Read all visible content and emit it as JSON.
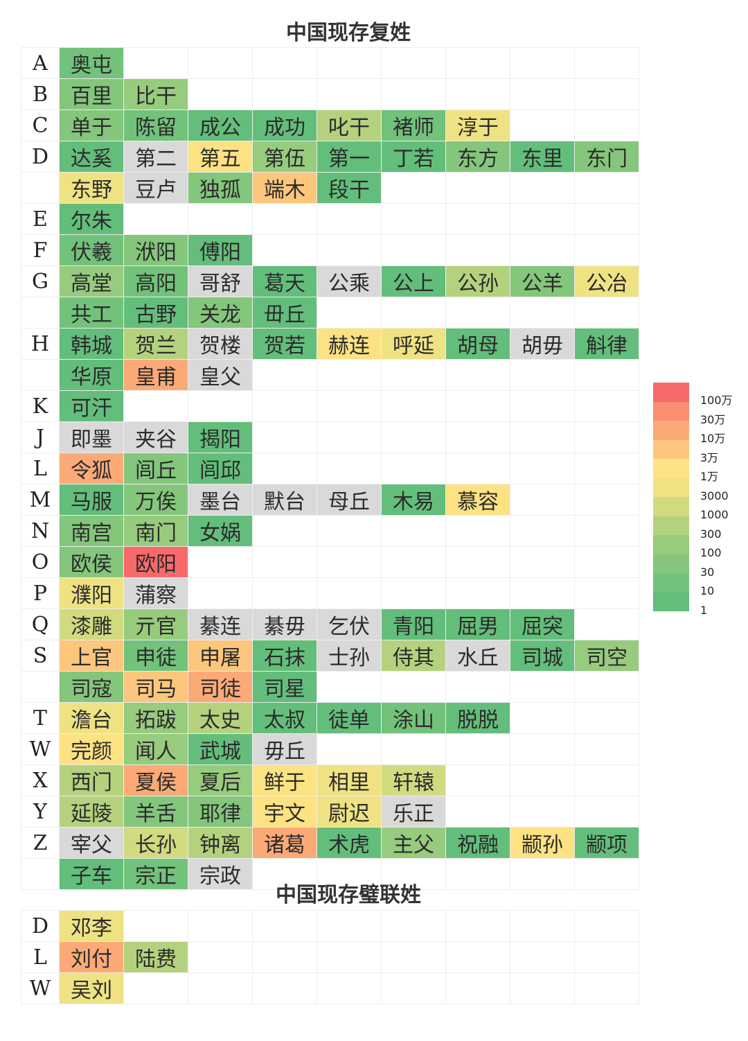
{
  "chart_data": {
    "type": "table",
    "title": "中国现存复姓",
    "palette": {
      "1": "#63be7b",
      "2": "#72c27b",
      "3": "#84c67c",
      "4": "#97cb7d",
      "5": "#b4d27e",
      "6": "#d2da80",
      "7": "#efe283",
      "8": "#fde283",
      "9": "#fcc67c",
      "10": "#fbaa77",
      "11": "#f98e72",
      "12": "#f8696b",
      "na": "#d9d9d9"
    },
    "legend": {
      "labels": [
        "100万",
        "30万",
        "10万",
        "3万",
        "1万",
        "3000",
        "1000",
        "300",
        "100",
        "30",
        "10",
        "1"
      ],
      "colors": [
        "#f8696b",
        "#f98e72",
        "#fbaa77",
        "#fcc67c",
        "#fde283",
        "#efe283",
        "#d2da80",
        "#b4d27e",
        "#97cb7d",
        "#84c67c",
        "#72c27b",
        "#63be7b"
      ]
    },
    "rows": [
      {
        "letter": "A",
        "cells": [
          [
            "奥屯",
            2
          ]
        ]
      },
      {
        "letter": "B",
        "cells": [
          [
            "百里",
            3
          ],
          [
            "比干",
            4
          ]
        ]
      },
      {
        "letter": "C",
        "cells": [
          [
            "单于",
            3
          ],
          [
            "陈留",
            2
          ],
          [
            "成公",
            1
          ],
          [
            "成功",
            1
          ],
          [
            "叱干",
            5
          ],
          [
            "褚师",
            2
          ],
          [
            "淳于",
            7
          ]
        ]
      },
      {
        "letter": "D",
        "cells": [
          [
            "达奚",
            1
          ],
          [
            "第二",
            "na"
          ],
          [
            "第五",
            8
          ],
          [
            "第伍",
            4
          ],
          [
            "第一",
            1
          ],
          [
            "丁若",
            1
          ],
          [
            "东方",
            3
          ],
          [
            "东里",
            1
          ],
          [
            "东门",
            3
          ]
        ]
      },
      {
        "letter": "",
        "cells": [
          [
            "东野",
            7
          ],
          [
            "豆卢",
            "na"
          ],
          [
            "独孤",
            3
          ],
          [
            "端木",
            9
          ],
          [
            "段干",
            1
          ]
        ]
      },
      {
        "letter": "E",
        "cells": [
          [
            "尔朱",
            1
          ]
        ]
      },
      {
        "letter": "F",
        "cells": [
          [
            "伏羲",
            2
          ],
          [
            "洑阳",
            3
          ],
          [
            "傅阳",
            1
          ]
        ]
      },
      {
        "letter": "G",
        "cells": [
          [
            "高堂",
            4
          ],
          [
            "高阳",
            2
          ],
          [
            "哥舒",
            "na"
          ],
          [
            "葛天",
            1
          ],
          [
            "公乘",
            "na"
          ],
          [
            "公上",
            1
          ],
          [
            "公孙",
            5
          ],
          [
            "公羊",
            3
          ],
          [
            "公冶",
            7
          ]
        ]
      },
      {
        "letter": "",
        "cells": [
          [
            "共工",
            2
          ],
          [
            "古野",
            1
          ],
          [
            "关龙",
            3
          ],
          [
            "毌丘",
            1
          ]
        ]
      },
      {
        "letter": "H",
        "cells": [
          [
            "韩城",
            1
          ],
          [
            "贺兰",
            5
          ],
          [
            "贺楼",
            "na"
          ],
          [
            "贺若",
            1
          ],
          [
            "赫连",
            8
          ],
          [
            "呼延",
            7
          ],
          [
            "胡母",
            1
          ],
          [
            "胡毋",
            "na"
          ],
          [
            "斛律",
            1
          ]
        ]
      },
      {
        "letter": "",
        "cells": [
          [
            "华原",
            1
          ],
          [
            "皇甫",
            10
          ],
          [
            "皇父",
            "na"
          ]
        ]
      },
      {
        "letter": "K",
        "cells": [
          [
            "可汗",
            1
          ]
        ]
      },
      {
        "letter": "J",
        "cells": [
          [
            "即墨",
            "na"
          ],
          [
            "夹谷",
            "na"
          ],
          [
            "揭阳",
            1
          ]
        ]
      },
      {
        "letter": "L",
        "cells": [
          [
            "令狐",
            10
          ],
          [
            "闾丘",
            3
          ],
          [
            "闾邱",
            1
          ]
        ]
      },
      {
        "letter": "M",
        "cells": [
          [
            "马服",
            1
          ],
          [
            "万俟",
            3
          ],
          [
            "墨台",
            "na"
          ],
          [
            "默台",
            "na"
          ],
          [
            "母丘",
            "na"
          ],
          [
            "木易",
            1
          ],
          [
            "慕容",
            8
          ]
        ]
      },
      {
        "letter": "N",
        "cells": [
          [
            "南宫",
            3
          ],
          [
            "南门",
            4
          ],
          [
            "女娲",
            1
          ]
        ]
      },
      {
        "letter": "O",
        "cells": [
          [
            "欧侯",
            3
          ],
          [
            "欧阳",
            12
          ]
        ]
      },
      {
        "letter": "P",
        "cells": [
          [
            "濮阳",
            7
          ],
          [
            "蒲察",
            "na"
          ]
        ]
      },
      {
        "letter": "Q",
        "cells": [
          [
            "漆雕",
            6
          ],
          [
            "亓官",
            4
          ],
          [
            "綦连",
            "na"
          ],
          [
            "綦毋",
            "na"
          ],
          [
            "乞伏",
            "na"
          ],
          [
            "青阳",
            1
          ],
          [
            "屈男",
            1
          ],
          [
            "屈突",
            1
          ]
        ]
      },
      {
        "letter": "S",
        "cells": [
          [
            "上官",
            9
          ],
          [
            "申徒",
            2
          ],
          [
            "申屠",
            9
          ],
          [
            "石抹",
            1
          ],
          [
            "士孙",
            "na"
          ],
          [
            "侍其",
            5
          ],
          [
            "水丘",
            "na"
          ],
          [
            "司城",
            1
          ],
          [
            "司空",
            4
          ]
        ]
      },
      {
        "letter": "",
        "cells": [
          [
            "司寇",
            3
          ],
          [
            "司马",
            9
          ],
          [
            "司徒",
            10
          ],
          [
            "司星",
            1
          ]
        ]
      },
      {
        "letter": "T",
        "cells": [
          [
            "澹台",
            7
          ],
          [
            "拓跋",
            4
          ],
          [
            "太史",
            5
          ],
          [
            "太叔",
            1
          ],
          [
            "徒单",
            1
          ],
          [
            "涂山",
            2
          ],
          [
            "脱脱",
            1
          ]
        ]
      },
      {
        "letter": "W",
        "cells": [
          [
            "完颜",
            8
          ],
          [
            "闻人",
            4
          ],
          [
            "武城",
            1
          ],
          [
            "毋丘",
            "na"
          ]
        ]
      },
      {
        "letter": "X",
        "cells": [
          [
            "西门",
            5
          ],
          [
            "夏侯",
            10
          ],
          [
            "夏后",
            4
          ],
          [
            "鲜于",
            8
          ],
          [
            "相里",
            7
          ],
          [
            "轩辕",
            6
          ]
        ]
      },
      {
        "letter": "Y",
        "cells": [
          [
            "延陵",
            5
          ],
          [
            "羊舌",
            3
          ],
          [
            "耶律",
            3
          ],
          [
            "宇文",
            8
          ],
          [
            "尉迟",
            7
          ],
          [
            "乐正",
            "na"
          ]
        ]
      },
      {
        "letter": "Z",
        "cells": [
          [
            "宰父",
            "na"
          ],
          [
            "长孙",
            6
          ],
          [
            "钟离",
            5
          ],
          [
            "诸葛",
            10
          ],
          [
            "术虎",
            1
          ],
          [
            "主父",
            4
          ],
          [
            "祝融",
            1
          ],
          [
            "颛孙",
            8
          ],
          [
            "颛项",
            1
          ]
        ]
      },
      {
        "letter": "",
        "cells": [
          [
            "子车",
            1
          ],
          [
            "宗正",
            2
          ],
          [
            "宗政",
            "na"
          ]
        ]
      }
    ],
    "title2": "中国现存璧联姓",
    "rows2": [
      {
        "letter": "D",
        "cells": [
          [
            "邓李",
            7
          ]
        ]
      },
      {
        "letter": "L",
        "cells": [
          [
            "刘付",
            10
          ],
          [
            "陆费",
            5
          ]
        ]
      },
      {
        "letter": "W",
        "cells": [
          [
            "吴刘",
            7
          ]
        ]
      }
    ]
  }
}
